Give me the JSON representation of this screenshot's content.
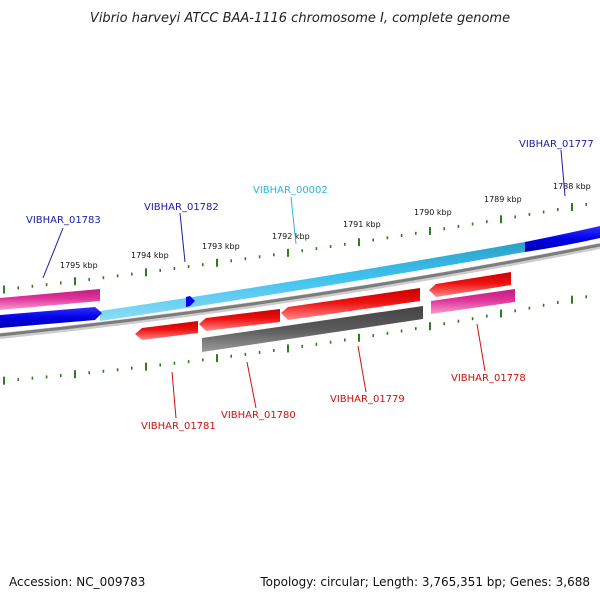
{
  "title": "Vibrio harveyi ATCC BAA-1116 chromosome I, complete genome",
  "footer": {
    "accession": "Accession: NC_009783",
    "summary": "Topology: circular; Length: 3,765,351 bp; Genes: 3,688"
  },
  "ruler": {
    "unit": "kbp",
    "labels": [
      "1795 kbp",
      "1794 kbp",
      "1793 kbp",
      "1792 kbp",
      "1791 kbp",
      "1790 kbp",
      "1789 kbp",
      "1788 kbp"
    ],
    "tick_color": "#2e7d1e"
  },
  "colors": {
    "forward_label": "#1a1aa6",
    "pseudo_label": "#2ab4e0",
    "reverse_label": "#cc1111",
    "blue": "#0000ee",
    "light_blue": "#3fc1ee",
    "magenta": "#e0339a",
    "red": "#ee1111",
    "gray": "#5a5a5a",
    "backbone": "#888888"
  },
  "genes": [
    {
      "id": "VIBHAR_01783",
      "strand": "forward",
      "label_color": "forward"
    },
    {
      "id": "VIBHAR_01782",
      "strand": "forward",
      "label_color": "forward"
    },
    {
      "id": "VIBHAR_00002",
      "strand": "forward",
      "label_color": "pseudo"
    },
    {
      "id": "VIBHAR_01777",
      "strand": "forward",
      "label_color": "forward"
    },
    {
      "id": "VIBHAR_01781",
      "strand": "reverse",
      "label_color": "reverse"
    },
    {
      "id": "VIBHAR_01780",
      "strand": "reverse",
      "label_color": "reverse"
    },
    {
      "id": "VIBHAR_01779",
      "strand": "reverse",
      "label_color": "reverse"
    },
    {
      "id": "VIBHAR_01778",
      "strand": "reverse",
      "label_color": "reverse"
    }
  ]
}
